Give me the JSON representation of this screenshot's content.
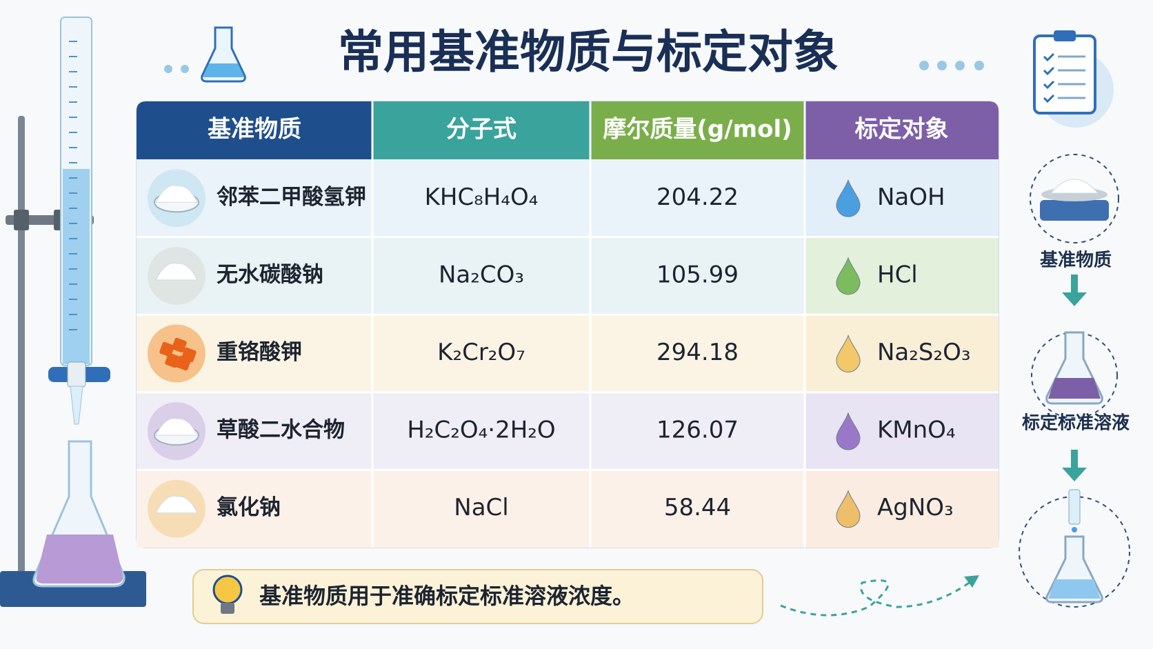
{
  "title": "常用基准物质与标定对象",
  "table": {
    "header": [
      "基准物质",
      "分子式",
      "摩尔质量(g/mol)",
      "标定对象"
    ],
    "rows": [
      [
        "邻苯二甲酸氢钾",
        "KHC₈H₄O₄",
        204.22,
        "NaOH"
      ],
      [
        "无水碳酸钠",
        "Na₂CO₃",
        105.99,
        "HCl"
      ],
      [
        "重铬酸钾",
        "K₂Cr₂O₇",
        294.18,
        "Na₂S₂O₃"
      ],
      [
        "草酸二水合物",
        "H₂C₂O₄·2H₂O",
        126.07,
        "KMnO₄"
      ],
      [
        "氯化钠",
        "NaCl",
        58.44,
        "AgNO₃"
      ]
    ]
  },
  "flow": {
    "steps": [
      "基准物质",
      "标定标准溶液"
    ]
  },
  "tip": "基准物质用于准确标定标准溶液浓度。"
}
